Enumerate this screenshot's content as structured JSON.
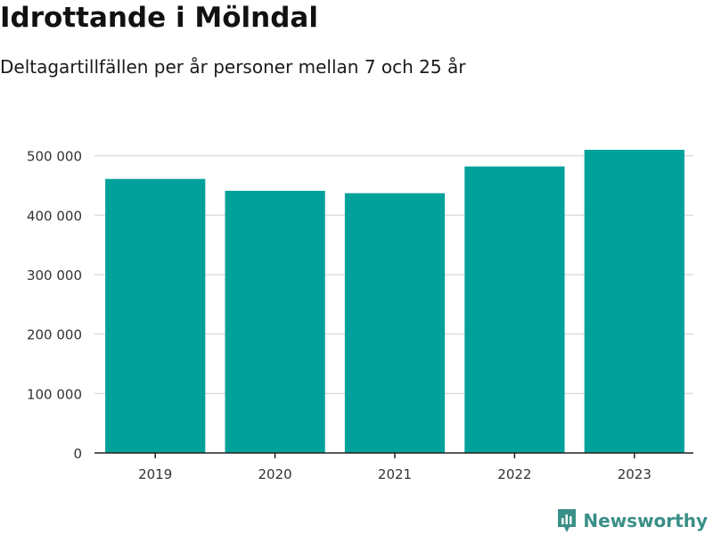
{
  "colors": {
    "bar": "#00a19a",
    "grid": "#dddddd",
    "axis": "#222222",
    "tick_text": "#333333",
    "brand": "#3a8f87"
  },
  "brand": {
    "name": "Newsworthy",
    "icon": "newsworthy-logo-icon"
  },
  "chart_data": {
    "type": "bar",
    "title": "Idrottande i Mölndal",
    "subtitle": "Deltagartillfällen per år personer mellan 7 och 25 år",
    "xlabel": "",
    "ylabel": "",
    "categories": [
      "2019",
      "2020",
      "2021",
      "2022",
      "2023"
    ],
    "series": [
      {
        "values": [
          461000,
          441000,
          437000,
          482000,
          510000
        ]
      }
    ],
    "ylim": [
      0,
      510000
    ],
    "yticks": [
      0,
      100000,
      200000,
      300000,
      400000,
      500000
    ],
    "ytick_labels": [
      "0",
      "100 000",
      "200 000",
      "300 000",
      "400 000",
      "500 000"
    ],
    "grid": true,
    "legend": "none"
  }
}
